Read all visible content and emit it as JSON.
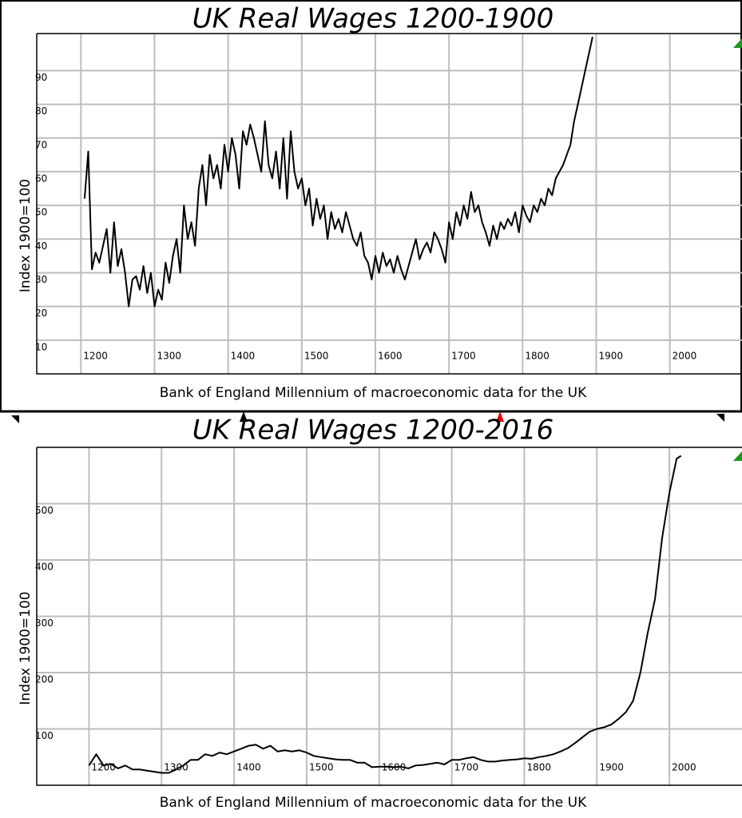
{
  "chart_data": [
    {
      "type": "line",
      "title": "UK Real Wages 1200-1900",
      "xlabel": "Bank of England Millennium of macroeconomic data for the UK",
      "ylabel": "Index 1900=100",
      "color": "#000000",
      "grid": true,
      "xlim": [
        1140,
        2098
      ],
      "ylim": [
        0,
        101
      ],
      "xticks": [
        1200,
        1300,
        1400,
        1500,
        1600,
        1700,
        1800,
        1900,
        2000
      ],
      "yticks": [
        10,
        20,
        30,
        40,
        50,
        60,
        70,
        80,
        90
      ],
      "x": [
        1205,
        1210,
        1215,
        1220,
        1225,
        1230,
        1235,
        1240,
        1245,
        1250,
        1255,
        1260,
        1265,
        1270,
        1275,
        1280,
        1285,
        1290,
        1295,
        1300,
        1305,
        1310,
        1315,
        1320,
        1325,
        1330,
        1335,
        1340,
        1345,
        1350,
        1355,
        1360,
        1365,
        1370,
        1375,
        1380,
        1385,
        1390,
        1395,
        1400,
        1405,
        1410,
        1415,
        1420,
        1425,
        1430,
        1435,
        1440,
        1445,
        1450,
        1455,
        1460,
        1465,
        1470,
        1475,
        1480,
        1485,
        1490,
        1495,
        1500,
        1505,
        1510,
        1515,
        1520,
        1525,
        1530,
        1535,
        1540,
        1545,
        1550,
        1555,
        1560,
        1565,
        1570,
        1575,
        1580,
        1585,
        1590,
        1595,
        1600,
        1605,
        1610,
        1615,
        1620,
        1625,
        1630,
        1635,
        1640,
        1645,
        1650,
        1655,
        1660,
        1665,
        1670,
        1675,
        1680,
        1685,
        1690,
        1695,
        1700,
        1705,
        1710,
        1715,
        1720,
        1725,
        1730,
        1735,
        1740,
        1745,
        1750,
        1755,
        1760,
        1765,
        1770,
        1775,
        1780,
        1785,
        1790,
        1795,
        1800,
        1805,
        1810,
        1815,
        1820,
        1825,
        1830,
        1835,
        1840,
        1845,
        1850,
        1855,
        1860,
        1865,
        1870,
        1875,
        1880,
        1885,
        1890,
        1895
      ],
      "values": [
        52,
        66,
        31,
        36,
        33,
        38,
        43,
        30,
        45,
        32,
        37,
        30,
        20,
        28,
        29,
        25,
        32,
        24,
        30,
        20,
        25,
        22,
        33,
        27,
        35,
        40,
        30,
        50,
        40,
        45,
        38,
        55,
        62,
        50,
        65,
        58,
        62,
        55,
        68,
        60,
        70,
        65,
        55,
        72,
        68,
        74,
        70,
        65,
        60,
        75,
        62,
        58,
        66,
        55,
        70,
        52,
        72,
        60,
        55,
        58,
        50,
        55,
        44,
        52,
        46,
        50,
        40,
        48,
        43,
        46,
        42,
        48,
        44,
        40,
        38,
        42,
        35,
        33,
        28,
        35,
        30,
        36,
        32,
        34,
        30,
        35,
        31,
        28,
        32,
        36,
        40,
        34,
        37,
        39,
        36,
        42,
        40,
        37,
        33,
        45,
        40,
        48,
        44,
        50,
        46,
        54,
        48,
        50,
        45,
        42,
        38,
        44,
        40,
        45,
        43,
        46,
        44,
        48,
        42,
        50,
        47,
        45,
        50,
        48,
        52,
        50,
        55,
        53,
        58,
        60,
        62,
        65,
        68,
        75,
        80,
        85,
        90,
        95,
        100
      ]
    },
    {
      "type": "line",
      "title": "UK Real Wages 1200-2016",
      "xlabel": "Bank of England Millennium of macroeconomic data for the UK",
      "ylabel": "Index 1900=100",
      "color": "#000000",
      "grid": true,
      "xlim": [
        1128,
        2100
      ],
      "ylim": [
        0,
        600
      ],
      "xticks": [
        1200,
        1300,
        1400,
        1500,
        1600,
        1700,
        1800,
        1900,
        2000
      ],
      "yticks": [
        100,
        200,
        300,
        400,
        500
      ],
      "x": [
        1200,
        1210,
        1220,
        1230,
        1240,
        1250,
        1260,
        1270,
        1280,
        1290,
        1300,
        1310,
        1320,
        1330,
        1340,
        1350,
        1360,
        1370,
        1380,
        1390,
        1400,
        1410,
        1420,
        1430,
        1440,
        1450,
        1460,
        1470,
        1480,
        1490,
        1500,
        1510,
        1520,
        1530,
        1540,
        1550,
        1560,
        1570,
        1580,
        1590,
        1600,
        1610,
        1620,
        1630,
        1640,
        1650,
        1660,
        1670,
        1680,
        1690,
        1700,
        1710,
        1720,
        1730,
        1740,
        1750,
        1760,
        1770,
        1780,
        1790,
        1800,
        1810,
        1820,
        1830,
        1840,
        1850,
        1860,
        1870,
        1880,
        1890,
        1900,
        1910,
        1920,
        1930,
        1940,
        1950,
        1960,
        1970,
        1980,
        1990,
        2000,
        2010,
        2016
      ],
      "values": [
        35,
        55,
        35,
        38,
        30,
        35,
        28,
        28,
        26,
        24,
        22,
        22,
        28,
        35,
        45,
        45,
        55,
        52,
        58,
        55,
        60,
        65,
        70,
        72,
        65,
        70,
        60,
        62,
        60,
        62,
        58,
        52,
        50,
        48,
        46,
        45,
        45,
        40,
        40,
        32,
        33,
        33,
        32,
        33,
        30,
        35,
        36,
        38,
        40,
        37,
        45,
        45,
        48,
        50,
        45,
        42,
        42,
        44,
        45,
        46,
        48,
        47,
        50,
        52,
        55,
        60,
        66,
        75,
        85,
        95,
        100,
        103,
        108,
        118,
        130,
        150,
        200,
        270,
        330,
        440,
        520,
        580,
        585
      ]
    }
  ]
}
